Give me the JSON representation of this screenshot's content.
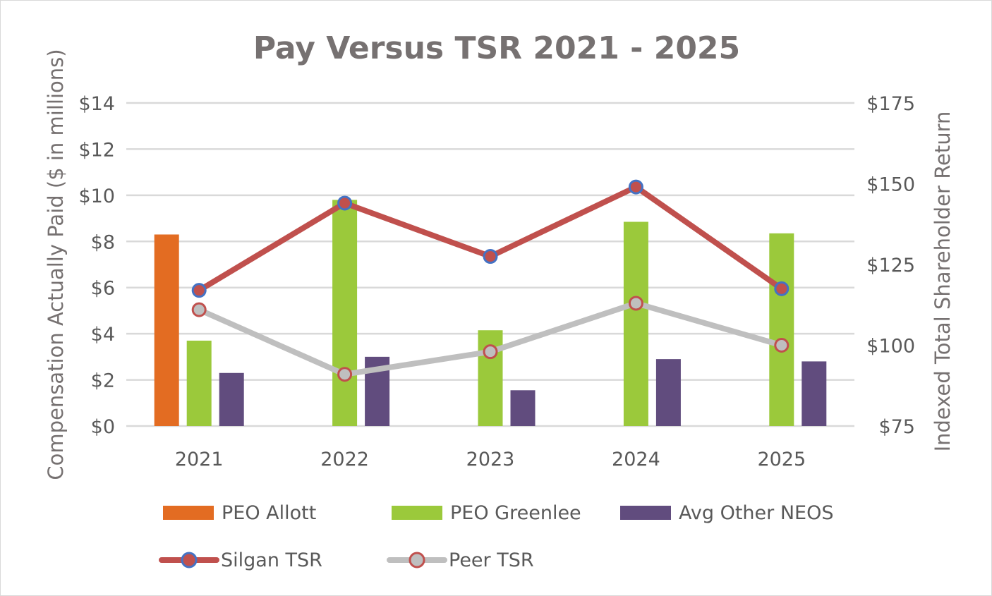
{
  "chart_data": {
    "type": "bar",
    "title": "Pay Versus TSR 2021 - 2025",
    "categories": [
      "2021",
      "2022",
      "2023",
      "2024",
      "2025"
    ],
    "y_left": {
      "label": "Compensation Actually Paid ($ in millions)",
      "range": [
        0,
        14
      ],
      "ticks": [
        0,
        2,
        4,
        6,
        8,
        10,
        12,
        14
      ],
      "tick_labels": [
        "$0",
        "$2",
        "$4",
        "$6",
        "$8",
        "$10",
        "$12",
        "$14"
      ]
    },
    "y_right": {
      "label": "Indexed Total Shareholder Return",
      "range": [
        75,
        175
      ],
      "ticks": [
        75,
        100,
        125,
        150,
        175
      ],
      "tick_labels": [
        "$75",
        "$100",
        "$125",
        "$150",
        "$175"
      ]
    },
    "bar_series": [
      {
        "name": "PEO Allott",
        "color": "#E36C22",
        "values": [
          8.3,
          null,
          null,
          null,
          null
        ]
      },
      {
        "name": "PEO Greenlee",
        "color": "#9BC93B",
        "values": [
          3.7,
          9.8,
          4.15,
          8.85,
          8.35
        ]
      },
      {
        "name": "Avg Other NEOS",
        "color": "#614C7E",
        "values": [
          2.3,
          3.0,
          1.55,
          2.9,
          2.8
        ]
      }
    ],
    "line_series": [
      {
        "name": "Silgan TSR",
        "color": "#C0504D",
        "marker_fill": "#C0504D",
        "marker_stroke": "#4472C4",
        "axis": "right",
        "values": [
          117,
          144,
          127.5,
          149,
          117.5
        ]
      },
      {
        "name": "Peer TSR",
        "color": "#BFBFBF",
        "marker_fill": "#BFBFBF",
        "marker_stroke": "#C0504D",
        "axis": "right",
        "values": [
          111,
          91,
          98,
          113,
          100
        ]
      }
    ],
    "grid": true,
    "legend_position": "bottom"
  }
}
